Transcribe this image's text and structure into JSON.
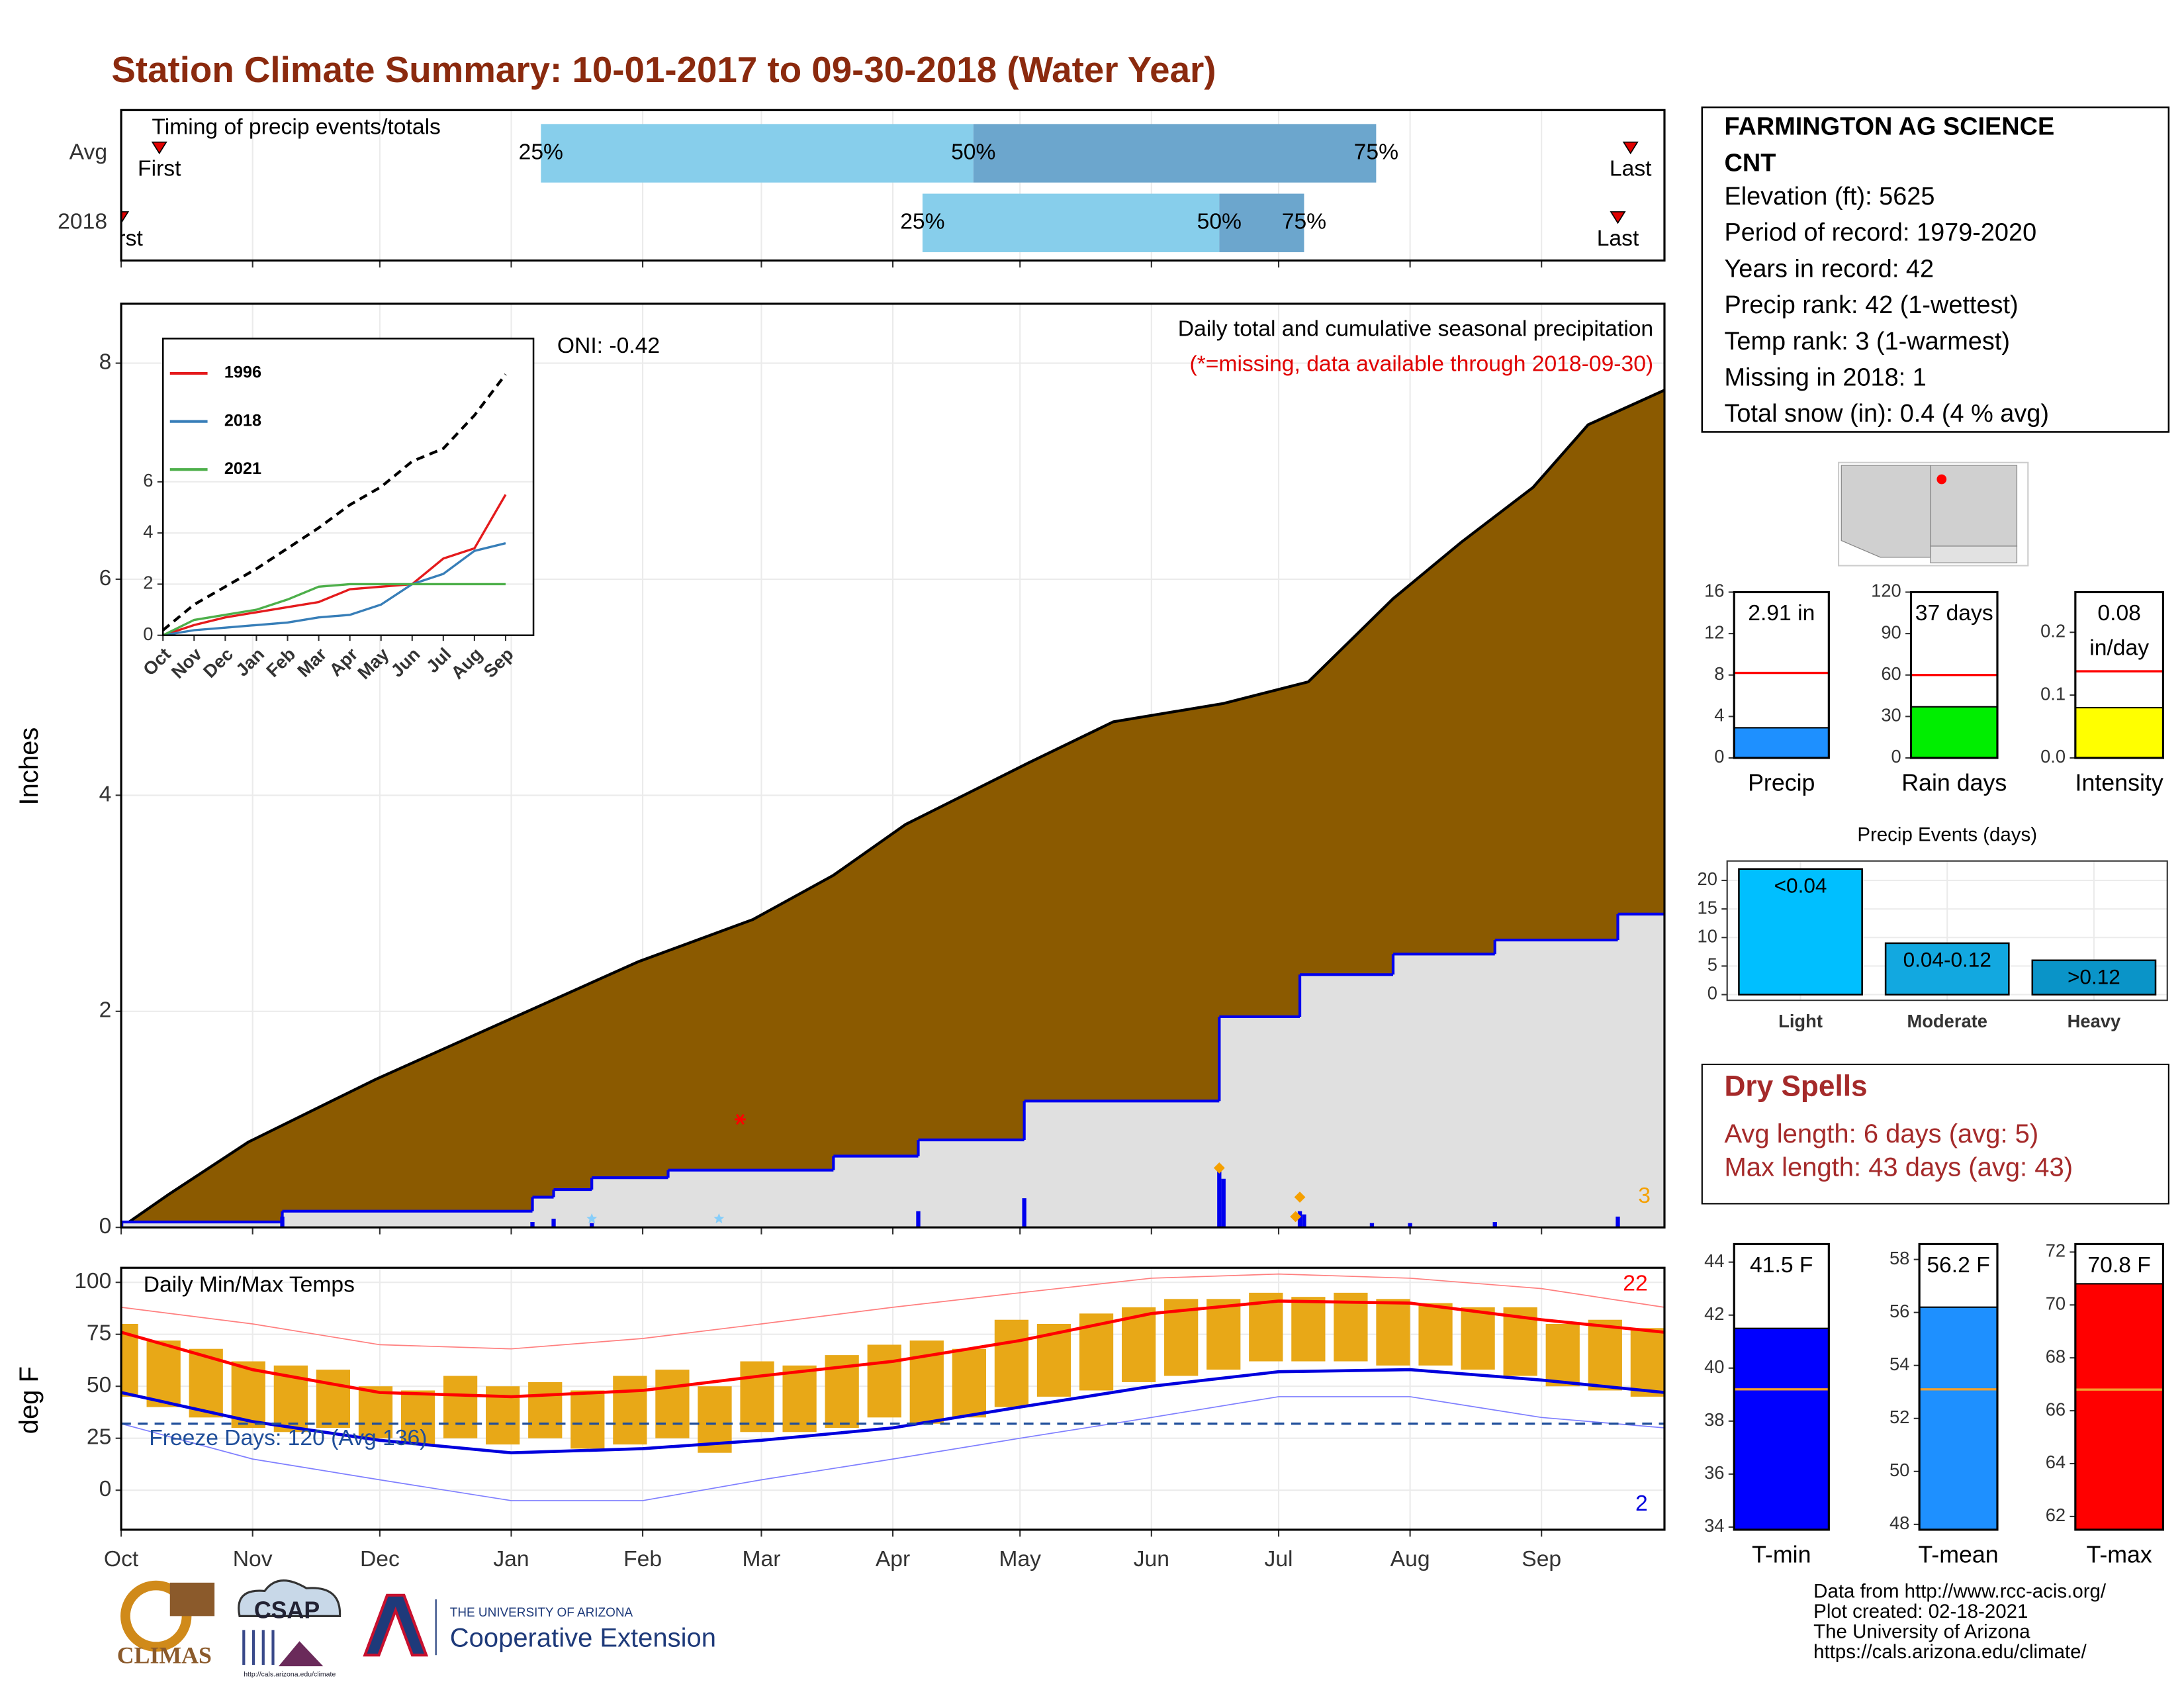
{
  "title": "Station Climate Summary: 10-01-2017 to 09-30-2018 (Water Year)",
  "station": {
    "name_lines": [
      "FARMINGTON AG SCIENCE",
      "CNT"
    ],
    "lines": [
      "Elevation (ft): 5625",
      "Period of record: 1979-2020",
      "Years in record: 42",
      "Precip rank: 42 (1-wettest)",
      "Temp rank: 3 (1-warmest)",
      "Missing in 2018: 1",
      "Total snow (in): 0.4 (4 % avg)"
    ]
  },
  "dry_spells": {
    "title": "Dry Spells",
    "lines": [
      "Avg length: 6 days (avg: 5)",
      "Max length: 43 days (avg: 43)"
    ]
  },
  "footer": [
    "Data from http://www.rcc-acis.org/",
    "Plot created: 02-18-2021",
    "The University of Arizona",
    "https://cals.arizona.edu/climate/"
  ],
  "logos": {
    "climas": "CLIMAS",
    "csap": "CSAP",
    "csap_url": "http://cals.arizona.edu/climate",
    "ua": "THE UNIVERSITY OF ARIZONA",
    "coop": "Cooperative Extension"
  },
  "chart_data": [
    {
      "type": "timing",
      "title": "Timing of precip events/totals",
      "categories": [
        "Avg",
        "2018"
      ],
      "xlim": [
        0,
        364
      ],
      "series": [
        {
          "first": 9,
          "q25": 99,
          "q50": 201,
          "q75": 296,
          "last": 356
        },
        {
          "first": 0,
          "q25": 189,
          "q50": 259,
          "q75": 279,
          "last": 353
        }
      ],
      "quantile_labels": [
        "25%",
        "50%",
        "75%"
      ],
      "first_label": "First",
      "last_label": "Last",
      "colors": {
        "lower": "#87ceeb",
        "upper": "#6ca6cd",
        "marker": "#e00000"
      }
    },
    {
      "type": "area",
      "title": "Daily total and cumulative seasonal precipitation",
      "subtitle": "(*=missing, data available through 2018-09-30)",
      "annotation": "ONI: -0.42",
      "count_label": 3,
      "ylabel": "Inches",
      "grid": true,
      "xlim": [
        0,
        364
      ],
      "xticks": [
        {
          "value": 0,
          "label": "Oct"
        },
        {
          "value": 31,
          "label": "Nov"
        },
        {
          "value": 61,
          "label": "Dec"
        },
        {
          "value": 92,
          "label": "Jan"
        },
        {
          "value": 123,
          "label": "Feb"
        },
        {
          "value": 151,
          "label": "Mar"
        },
        {
          "value": 182,
          "label": "Apr"
        },
        {
          "value": 212,
          "label": "May"
        },
        {
          "value": 243,
          "label": "Jun"
        },
        {
          "value": 273,
          "label": "Jul"
        },
        {
          "value": 304,
          "label": "Aug"
        },
        {
          "value": 335,
          "label": "Sep"
        }
      ],
      "ylim": [
        0,
        8.55
      ],
      "yticks": [
        0,
        2,
        4,
        6,
        8
      ],
      "avg_cumulative": {
        "color": "#8b5a00",
        "x": [
          0,
          11,
          30,
          60,
          93,
          122,
          149,
          168,
          185,
          214,
          234,
          260,
          280,
          300,
          316,
          333,
          346,
          364
        ],
        "values": [
          0,
          0.3,
          0.79,
          1.37,
          1.95,
          2.46,
          2.85,
          3.26,
          3.73,
          4.3,
          4.68,
          4.85,
          5.05,
          5.82,
          6.34,
          6.85,
          7.43,
          7.75
        ]
      },
      "cumulative": {
        "color": "#0000ee",
        "fill": "#e0e0e0",
        "x": [
          0,
          38,
          97,
          102,
          111,
          129,
          168,
          188,
          213,
          259,
          278,
          300,
          324,
          353
        ],
        "values": [
          0.05,
          0.15,
          0.28,
          0.35,
          0.46,
          0.53,
          0.66,
          0.81,
          1.17,
          1.95,
          2.34,
          2.53,
          2.66,
          2.9
        ]
      },
      "daily": {
        "color": "#0000ee",
        "x": [
          0,
          38,
          97,
          102,
          111,
          188,
          213,
          259,
          260,
          278,
          279,
          295,
          304,
          324,
          353
        ],
        "values": [
          0.05,
          0.1,
          0.05,
          0.08,
          0.04,
          0.15,
          0.27,
          0.52,
          0.45,
          0.15,
          0.12,
          0.04,
          0.04,
          0.05,
          0.1
        ]
      },
      "snow": {
        "color": "#f5a000",
        "x": [
          259,
          278,
          277
        ],
        "values": [
          0.55,
          0.28,
          0.1
        ]
      },
      "trace": {
        "color": "#87cefa",
        "x": [
          111,
          141
        ],
        "values": [
          0.08,
          0.08
        ]
      },
      "missing": {
        "color": "#ff0000",
        "x": [
          146
        ],
        "values": [
          1.0
        ]
      }
    },
    {
      "type": "line",
      "categories": [
        "Oct",
        "Nov",
        "Dec",
        "Jan",
        "Feb",
        "Mar",
        "Apr",
        "May",
        "Jun",
        "Jul",
        "Aug",
        "Sep"
      ],
      "ylim": [
        0,
        11.6
      ],
      "yticks": [
        0,
        2,
        4,
        6
      ],
      "grid": true,
      "series": [
        {
          "name": "1996",
          "color": "#e41a1c",
          "values": [
            0,
            0.4,
            0.7,
            0.9,
            1.1,
            1.3,
            1.8,
            1.9,
            2.0,
            3.0,
            3.4,
            5.5
          ]
        },
        {
          "name": "2018",
          "color": "#377eb8",
          "values": [
            0,
            0.2,
            0.3,
            0.4,
            0.5,
            0.7,
            0.8,
            1.2,
            2.0,
            2.4,
            3.3,
            3.6
          ]
        },
        {
          "name": "2021",
          "color": "#4daf4a",
          "values": [
            0,
            0.6,
            0.8,
            1.0,
            1.4,
            1.9,
            2.0,
            2.0,
            2.0,
            2.0,
            2.0,
            2.0
          ]
        }
      ],
      "average": {
        "color": "#000000",
        "dashed": true,
        "values": [
          0.2,
          1.2,
          1.9,
          2.6,
          3.4,
          4.2,
          5.1,
          5.8,
          6.8,
          7.3,
          8.6,
          10.2
        ]
      }
    },
    {
      "type": "temps",
      "title": "Daily Min/Max Temps",
      "annotation": "Freeze Days: 120 (Avg 136)",
      "high_count": 22,
      "low_count": 2,
      "ylabel": "deg F",
      "xlim": [
        0,
        364
      ],
      "ylim": [
        -19,
        107
      ],
      "yticks": [
        0,
        25,
        50,
        75,
        100
      ],
      "freeze": 32,
      "freeze_color": "#1f4e9a",
      "grid": true,
      "daily": {
        "color": "#e8a817",
        "x": [
          0,
          10,
          20,
          30,
          40,
          50,
          60,
          70,
          80,
          90,
          100,
          110,
          120,
          130,
          140,
          150,
          160,
          170,
          180,
          190,
          200,
          210,
          220,
          230,
          240,
          250,
          260,
          270,
          280,
          290,
          300,
          310,
          320,
          330,
          340,
          350,
          360
        ],
        "max": [
          80,
          72,
          68,
          62,
          60,
          58,
          50,
          48,
          55,
          50,
          52,
          48,
          55,
          58,
          50,
          62,
          60,
          65,
          70,
          72,
          68,
          82,
          80,
          85,
          88,
          92,
          92,
          95,
          93,
          95,
          92,
          90,
          88,
          88,
          80,
          82,
          78
        ],
        "min": [
          45,
          40,
          35,
          30,
          28,
          30,
          25,
          22,
          25,
          22,
          25,
          20,
          22,
          25,
          18,
          28,
          28,
          30,
          35,
          32,
          35,
          40,
          45,
          48,
          52,
          55,
          58,
          62,
          62,
          62,
          60,
          60,
          58,
          55,
          50,
          48,
          45
        ]
      },
      "avg_max": {
        "color": "#ff0000",
        "x": [
          0,
          31,
          61,
          92,
          123,
          151,
          182,
          212,
          243,
          273,
          304,
          335,
          364
        ],
        "values": [
          76,
          58,
          47,
          45,
          48,
          55,
          62,
          72,
          85,
          91,
          90,
          82,
          76
        ]
      },
      "avg_min": {
        "color": "#0000dd",
        "x": [
          0,
          31,
          61,
          92,
          123,
          151,
          182,
          212,
          243,
          273,
          304,
          335,
          364
        ],
        "values": [
          47,
          33,
          24,
          18,
          20,
          24,
          30,
          40,
          50,
          57,
          58,
          53,
          47
        ]
      },
      "record_max": {
        "color": "#ff7f7f",
        "x": [
          0,
          31,
          61,
          92,
          123,
          151,
          182,
          212,
          243,
          273,
          304,
          335,
          364
        ],
        "values": [
          88,
          80,
          70,
          68,
          73,
          80,
          88,
          95,
          102,
          104,
          102,
          97,
          88
        ]
      },
      "record_min": {
        "color": "#7f7fff",
        "x": [
          0,
          31,
          61,
          92,
          123,
          151,
          182,
          212,
          243,
          273,
          304,
          335,
          364
        ],
        "values": [
          32,
          15,
          5,
          -5,
          -5,
          5,
          15,
          25,
          35,
          45,
          45,
          35,
          30
        ]
      }
    },
    {
      "type": "gauge",
      "category": "Precip",
      "value": 2.91,
      "value_label": [
        "2.91 in"
      ],
      "average": 8.2,
      "color": "#1e90ff",
      "average_color": "#ff0000",
      "ylim": [
        0,
        16
      ],
      "yticks": [
        0,
        4,
        8,
        12,
        16
      ]
    },
    {
      "type": "gauge",
      "category": "Rain days",
      "value": 37,
      "value_label": [
        "37 days"
      ],
      "average": 60,
      "color": "#00ee00",
      "average_color": "#ff0000",
      "ylim": [
        0,
        120
      ],
      "yticks": [
        0,
        30,
        60,
        90,
        120
      ]
    },
    {
      "type": "gauge",
      "category": "Intensity",
      "value": 0.08,
      "value_label": [
        "0.08",
        "in/day"
      ],
      "average": 0.138,
      "color": "#ffff00",
      "average_color": "#ff0000",
      "ylim": [
        0,
        0.264
      ],
      "yticks": [
        {
          "value": 0,
          "label": "0.0"
        },
        0.1,
        0.2
      ]
    },
    {
      "type": "bar",
      "title": "Precip Events (days)",
      "categories": [
        "Light",
        "Moderate",
        "Heavy"
      ],
      "values": [
        22,
        9,
        6
      ],
      "bar_labels": [
        "<0.04",
        "0.04-0.12",
        ">0.12"
      ],
      "colors": [
        "#00bfff",
        "#12a8e0",
        "#0a94c8"
      ],
      "ylim": [
        -1,
        23.4
      ],
      "yticks": [
        0,
        5,
        10,
        15,
        20
      ],
      "grid": true
    },
    {
      "type": "gauge",
      "category": "T-min",
      "value": 41.5,
      "value_label": [
        "41.5 F"
      ],
      "average": 39.2,
      "color": "#0000ff",
      "average_color": "#f0a030",
      "ylim": [
        33.9,
        44.68
      ],
      "yticks": [
        34,
        36,
        38,
        40,
        42,
        44
      ]
    },
    {
      "type": "gauge",
      "category": "T-mean",
      "value": 56.2,
      "value_label": [
        "56.2 F"
      ],
      "average": 53.1,
      "color": "#1e90ff",
      "average_color": "#f0a030",
      "ylim": [
        47.8,
        58.58
      ],
      "yticks": [
        48,
        50,
        52,
        54,
        56,
        58
      ]
    },
    {
      "type": "gauge",
      "category": "T-max",
      "value": 70.8,
      "value_label": [
        "70.8 F"
      ],
      "average": 66.8,
      "color": "#ff0000",
      "average_color": "#f0a030",
      "ylim": [
        61.5,
        72.3
      ],
      "yticks": [
        62,
        64,
        66,
        68,
        70,
        72
      ]
    }
  ]
}
